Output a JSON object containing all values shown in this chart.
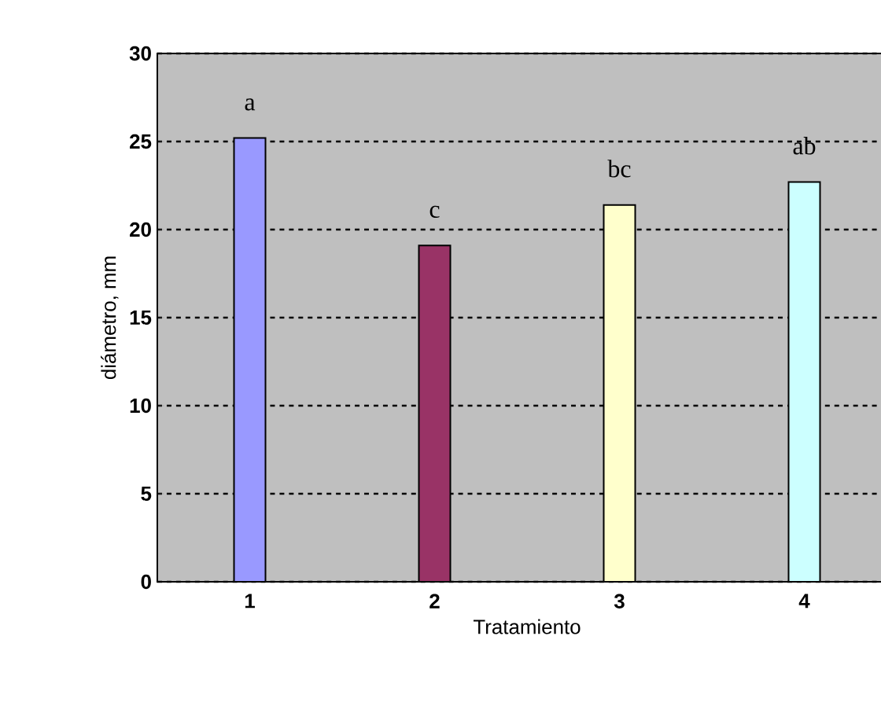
{
  "chart_data": {
    "type": "bar",
    "xlabel": "Tratamiento",
    "ylabel": "diámetro, mm",
    "categories": [
      "1",
      "2",
      "3",
      "4"
    ],
    "values": [
      25.2,
      19.1,
      21.4,
      22.7
    ],
    "colors": [
      "#9999ff",
      "#993366",
      "#ffffcc",
      "#ccffff"
    ],
    "ylim": [
      0,
      30
    ],
    "yticks": [
      0,
      5,
      10,
      15,
      20,
      25,
      30
    ],
    "grid": "y",
    "value_labels": [
      "a",
      "c",
      "bc",
      "ab"
    ]
  }
}
